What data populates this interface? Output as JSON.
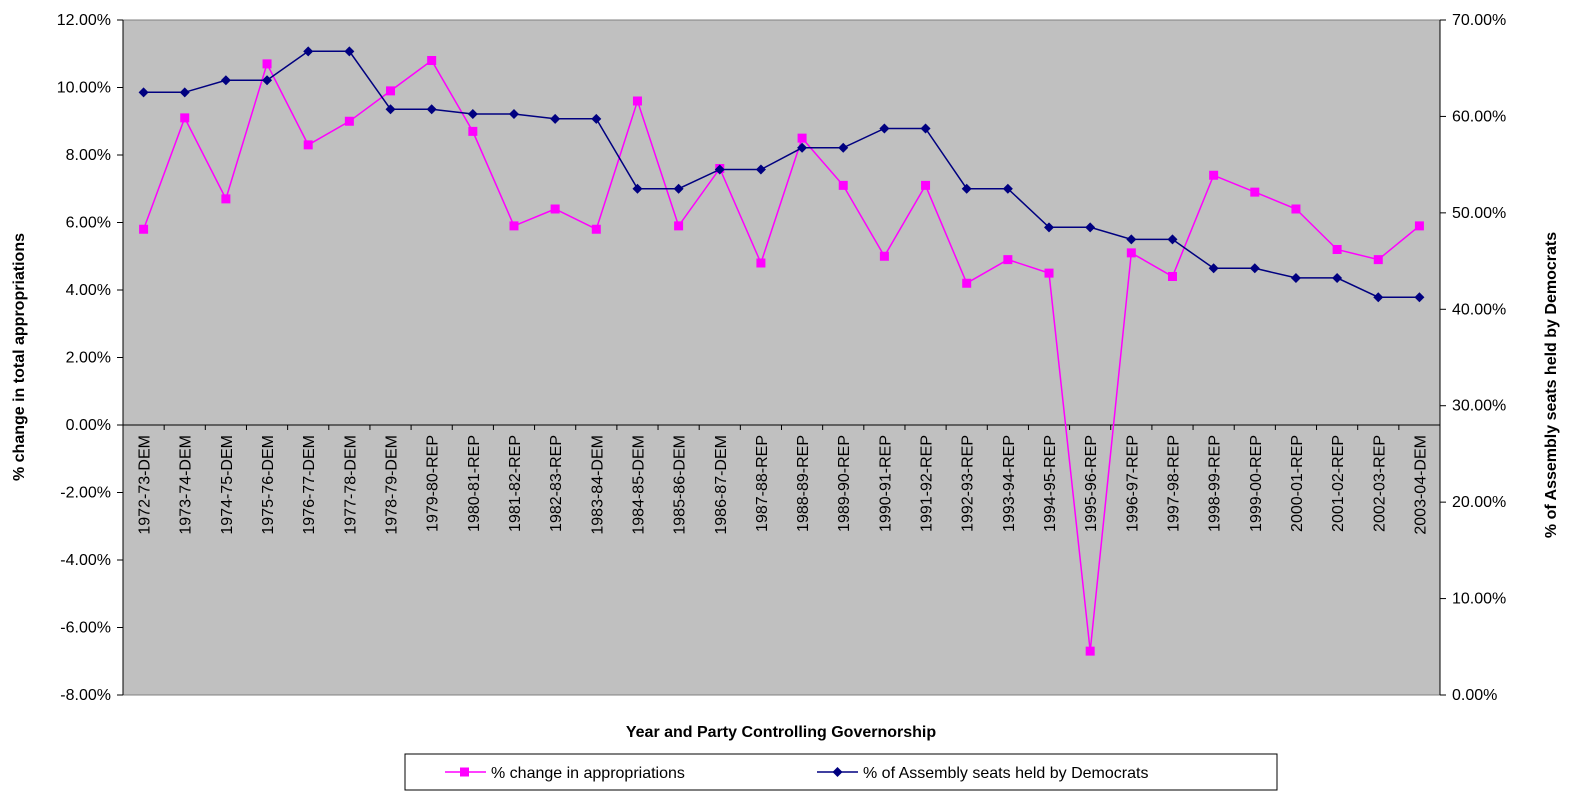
{
  "chart_data": {
    "type": "line",
    "title": "",
    "xlabel": "Year and Party Controlling Governorship",
    "ylabel": "% change in total appropriations",
    "y2label": "% of Assembly seats held by Democrats",
    "categories": [
      "1972-73-DEM",
      "1973-74-DEM",
      "1974-75-DEM",
      "1975-76-DEM",
      "1976-77-DEM",
      "1977-78-DEM",
      "1978-79-DEM",
      "1979-80-REP",
      "1980-81-REP",
      "1981-82-REP",
      "1982-83-REP",
      "1983-84-DEM",
      "1984-85-DEM",
      "1985-86-DEM",
      "1986-87-DEM",
      "1987-88-REP",
      "1988-89-REP",
      "1989-90-REP",
      "1990-91-REP",
      "1991-92-REP",
      "1992-93-REP",
      "1993-94-REP",
      "1994-95-REP",
      "1995-96-REP",
      "1996-97-REP",
      "1997-98-REP",
      "1998-99-REP",
      "1999-00-REP",
      "2000-01-REP",
      "2001-02-REP",
      "2002-03-REP",
      "2003-04-DEM"
    ],
    "ylim": [
      -0.08,
      0.12
    ],
    "y2lim": [
      0,
      0.7
    ],
    "yticks": [
      "12.00%",
      "10.00%",
      "8.00%",
      "6.00%",
      "4.00%",
      "2.00%",
      "0.00%",
      "-2.00%",
      "-4.00%",
      "-6.00%",
      "-8.00%"
    ],
    "y2ticks": [
      "70.00%",
      "60.00%",
      "50.00%",
      "40.00%",
      "30.00%",
      "20.00%",
      "10.00%",
      "0.00%"
    ],
    "grid": false,
    "plot_background": "#c0c0c0",
    "legend_position": "bottom",
    "series": [
      {
        "name": "% change in appropriations",
        "axis": "left",
        "color": "#ff00ff",
        "marker": "square",
        "values": [
          0.058,
          0.091,
          0.067,
          0.107,
          0.083,
          0.09,
          0.099,
          0.108,
          0.087,
          0.059,
          0.064,
          0.058,
          0.096,
          0.059,
          0.076,
          0.048,
          0.085,
          0.071,
          0.05,
          0.071,
          0.042,
          0.049,
          0.045,
          -0.067,
          0.051,
          0.044,
          0.074,
          0.069,
          0.064,
          0.052,
          0.049,
          0.059
        ]
      },
      {
        "name": "% of Assembly seats held by Democrats",
        "axis": "right",
        "color": "#000080",
        "marker": "diamond",
        "values": [
          0.625,
          0.625,
          0.6375,
          0.6375,
          0.6675,
          0.6675,
          0.6075,
          0.6075,
          0.6025,
          0.6025,
          0.5975,
          0.5975,
          0.525,
          0.525,
          0.545,
          0.545,
          0.5675,
          0.5675,
          0.5875,
          0.5875,
          0.525,
          0.525,
          0.485,
          0.485,
          0.4725,
          0.4725,
          0.4425,
          0.4425,
          0.4325,
          0.4325,
          0.4125,
          0.4125
        ]
      }
    ]
  }
}
